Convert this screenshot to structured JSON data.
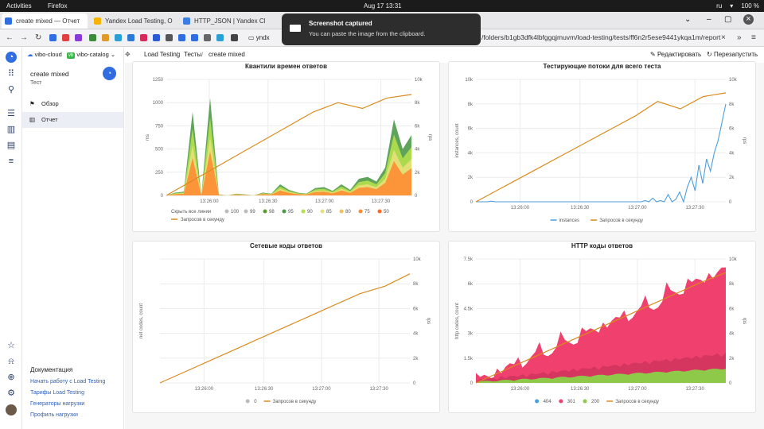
{
  "system_bar": {
    "activities": "Activities",
    "app": "Firefox",
    "clock": "Aug 17  13:31",
    "lang": "ru",
    "battery": "100 %"
  },
  "tabs": [
    {
      "label": "create mixed — Отчет",
      "color": "#2f6de1",
      "active": true
    },
    {
      "label": "Yandex Load Testing, O",
      "color": "#f5b400",
      "active": false
    },
    {
      "label": "HTTP_JSON | Yandex Cl",
      "color": "#3b7de0",
      "active": false
    }
  ],
  "notification": {
    "title": "Screenshot captured",
    "subtitle": "You can paste the image from the clipboard."
  },
  "address": {
    "url": "/folders/b1gb3dfk4lbfggqjmuvm/load-testing/tests/ff6n2r5ese9441ykqa1m/report",
    "bookmark": "yndx"
  },
  "header": {
    "cloud": "vibo-cloud",
    "catalog_badge": "vb",
    "catalog": "vibo-catalog"
  },
  "breadcrumbs": {
    "root": "Load Testing",
    "tests": "Тесты",
    "current": "create mixed"
  },
  "actions": {
    "edit": "Редактировать",
    "restart": "Перезапустить"
  },
  "test": {
    "name": "create mixed",
    "subtitle": "Тест"
  },
  "menu": {
    "overview": "Обзор",
    "report": "Отчет"
  },
  "docs": {
    "title": "Документация",
    "links": [
      "Начать работу с Load Testing",
      "Тарифы Load Testing",
      "Генераторы нагрузки",
      "Профиль нагрузки"
    ]
  },
  "rps_series_label": "Запросов в секунду",
  "chart_data": [
    {
      "type": "area",
      "title": "Квантили времен ответов",
      "ylabel": "ms",
      "y2label": "rps",
      "ylim": [
        0,
        1250
      ],
      "y2lim": [
        0,
        10000
      ],
      "yticks": [
        "0",
        "250",
        "500",
        "750",
        "1000",
        "1250"
      ],
      "y2ticks": [
        "0",
        "2k",
        "4k",
        "6k",
        "8k",
        "10k"
      ],
      "xticks": [
        "13:26:00",
        "13:26:30",
        "13:27:00",
        "13:27:30"
      ],
      "legend_hide": "Скрыть все линии",
      "series": [
        {
          "name": "100",
          "color": "#bbbbbb"
        },
        {
          "name": "99",
          "color": "#bbbbbb"
        },
        {
          "name": "98",
          "color": "#5a9e2f"
        },
        {
          "name": "95",
          "color": "#4f9a4a"
        },
        {
          "name": "90",
          "color": "#b5e04c"
        },
        {
          "name": "85",
          "color": "#e8e07a"
        },
        {
          "name": "80",
          "color": "#f5c060"
        },
        {
          "name": "75",
          "color": "#ff8c33"
        },
        {
          "name": "50",
          "color": "#ff6a20"
        },
        {
          "name": "Запросов в секунду",
          "color": "#d98b1f"
        }
      ],
      "rps": [
        0,
        1200,
        2400,
        3600,
        4800,
        6000,
        7200,
        8000,
        7500,
        8400,
        8700
      ]
    },
    {
      "type": "line",
      "title": "Тестирующие потоки для всего теста",
      "ylabel": "instances, count",
      "y2label": "rps",
      "ylim": [
        0,
        10000
      ],
      "y2lim": [
        0,
        10000
      ],
      "yticks": [
        "0",
        "2k",
        "4k",
        "6k",
        "8k",
        "10k"
      ],
      "y2ticks": [
        "0",
        "2k",
        "4k",
        "6k",
        "8k",
        "10k"
      ],
      "xticks": [
        "13:26:00",
        "13:26:30",
        "13:27:00",
        "13:27:30"
      ],
      "series": [
        {
          "name": "instances",
          "color": "#4a9ee0",
          "values": [
            0,
            50,
            0,
            0,
            100,
            0,
            0,
            300,
            800,
            3000,
            8000
          ]
        },
        {
          "name": "Запросов в секунду",
          "color": "#d98b1f",
          "values": [
            0,
            1000,
            2000,
            3000,
            4000,
            5000,
            6000,
            7000,
            8000,
            8500,
            8900
          ]
        }
      ]
    },
    {
      "type": "line",
      "title": "Сетевые коды ответов",
      "ylabel": "net codes, count",
      "y2label": "rps",
      "ylim": [
        0,
        1
      ],
      "y2lim": [
        0,
        10000
      ],
      "yticks": [],
      "y2ticks": [
        "0",
        "2k",
        "4k",
        "6k",
        "8k",
        "10k"
      ],
      "xticks": [
        "13:26:00",
        "13:26:30",
        "13:27:00",
        "13:27:30"
      ],
      "series": [
        {
          "name": "0",
          "color": "#bbbbbb",
          "values": [
            0,
            0,
            0,
            0,
            0,
            0,
            0,
            0,
            0,
            0,
            0
          ]
        },
        {
          "name": "Запросов в секунду",
          "color": "#d98b1f",
          "values": [
            0,
            900,
            1800,
            2700,
            3600,
            4500,
            5400,
            6300,
            7200,
            8100,
            8800
          ]
        }
      ]
    },
    {
      "type": "area",
      "title": "HTTP коды ответов",
      "ylabel": "http codes, count",
      "y2label": "rps",
      "ylim": [
        0,
        7500
      ],
      "y2lim": [
        0,
        10000
      ],
      "yticks": [
        "0",
        "1.5k",
        "3k",
        "4.5k",
        "6k",
        "7.5k"
      ],
      "y2ticks": [
        "0",
        "2k",
        "4k",
        "6k",
        "8k",
        "10k"
      ],
      "xticks": [
        "13:26:00",
        "13:26:30",
        "13:27:00",
        "13:27:30"
      ],
      "series": [
        {
          "name": "404",
          "color": "#4a9ee0",
          "values": [
            0,
            0,
            0,
            0,
            0,
            0,
            0,
            0,
            0,
            0,
            0
          ]
        },
        {
          "name": "301",
          "color": "#f0406e",
          "values": [
            0,
            500,
            1100,
            1700,
            2300,
            2900,
            3500,
            4100,
            4400,
            4300,
            4200
          ]
        },
        {
          "name": "200",
          "color": "#8fc94a",
          "values": [
            0,
            100,
            200,
            300,
            400,
            500,
            600,
            700,
            800,
            850,
            900
          ]
        },
        {
          "name": "Запросов в секунду",
          "color": "#d98b1f",
          "values": [
            0,
            900,
            1800,
            2700,
            3600,
            4500,
            5400,
            6300,
            7200,
            8100,
            8900
          ]
        }
      ]
    }
  ]
}
